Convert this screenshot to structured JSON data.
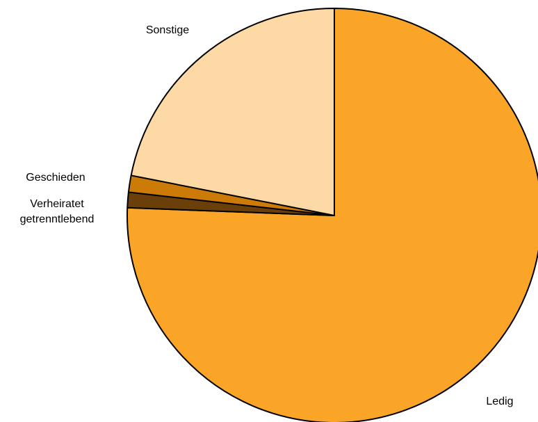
{
  "chart_data": {
    "type": "pie",
    "title": "",
    "start": "12 o'clock",
    "direction": "clockwise",
    "slices": [
      {
        "label": "Ledig",
        "value": 75.6,
        "color": "#FBA528"
      },
      {
        "label": "Verheiratet getrenntlebend",
        "label_lines": [
          "Verheiratet",
          "getrenntlebend"
        ],
        "value": 1.2,
        "color": "#6B3F0A"
      },
      {
        "label": "Geschieden",
        "value": 1.3,
        "color": "#CC7A08"
      },
      {
        "label": "Sonstige",
        "value": 21.9,
        "color": "#FDD9A5"
      }
    ],
    "legend": "none"
  }
}
